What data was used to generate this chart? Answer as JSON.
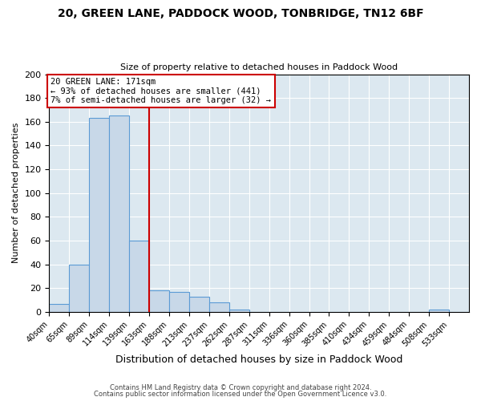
{
  "title": "20, GREEN LANE, PADDOCK WOOD, TONBRIDGE, TN12 6BF",
  "subtitle": "Size of property relative to detached houses in Paddock Wood",
  "xlabel": "Distribution of detached houses by size in Paddock Wood",
  "ylabel": "Number of detached properties",
  "bin_labels": [
    "40sqm",
    "65sqm",
    "89sqm",
    "114sqm",
    "139sqm",
    "163sqm",
    "188sqm",
    "213sqm",
    "237sqm",
    "262sqm",
    "287sqm",
    "311sqm",
    "336sqm",
    "360sqm",
    "385sqm",
    "410sqm",
    "434sqm",
    "459sqm",
    "484sqm",
    "508sqm",
    "533sqm"
  ],
  "bar_heights": [
    7,
    40,
    163,
    165,
    60,
    18,
    17,
    13,
    8,
    2,
    0,
    0,
    0,
    0,
    0,
    0,
    0,
    0,
    0,
    2,
    0
  ],
  "bar_color": "#c8d8e8",
  "bar_edge_color": "#5b9bd5",
  "vline_x": 5,
  "vline_color": "#cc0000",
  "ylim": [
    0,
    200
  ],
  "yticks": [
    0,
    20,
    40,
    60,
    80,
    100,
    120,
    140,
    160,
    180,
    200
  ],
  "annotation_box_text": "20 GREEN LANE: 171sqm\n← 93% of detached houses are smaller (441)\n7% of semi-detached houses are larger (32) →",
  "annotation_box_color": "#cc0000",
  "background_color": "#dce8f0",
  "footer_line1": "Contains HM Land Registry data © Crown copyright and database right 2024.",
  "footer_line2": "Contains public sector information licensed under the Open Government Licence v3.0."
}
